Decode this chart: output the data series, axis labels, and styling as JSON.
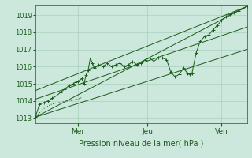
{
  "bg_color": "#cce8dc",
  "grid_color": "#aacfbf",
  "line_color": "#1a5c1a",
  "xlabel": "Pression niveau de la mer( hPa )",
  "yticks": [
    1013,
    1014,
    1015,
    1016,
    1017,
    1018,
    1019
  ],
  "ylim": [
    1012.7,
    1019.6
  ],
  "xlim": [
    0,
    100
  ],
  "xtick_positions": [
    20,
    53,
    88
  ],
  "xtick_labels": [
    "Mer",
    "Jeu",
    "Ven"
  ],
  "trend_lines": [
    [
      [
        0,
        1013.05
      ],
      [
        100,
        1019.5
      ]
    ],
    [
      [
        0,
        1014.6
      ],
      [
        100,
        1019.5
      ]
    ],
    [
      [
        0,
        1013.05
      ],
      [
        100,
        1017.0
      ]
    ],
    [
      [
        0,
        1014.1
      ],
      [
        100,
        1018.3
      ]
    ]
  ],
  "main_series": [
    [
      0,
      1013.05
    ],
    [
      2,
      1013.8
    ],
    [
      4,
      1013.9
    ],
    [
      6,
      1014.0
    ],
    [
      8,
      1014.15
    ],
    [
      10,
      1014.3
    ],
    [
      12,
      1014.5
    ],
    [
      14,
      1014.7
    ],
    [
      16,
      1014.9
    ],
    [
      18,
      1015.0
    ],
    [
      19,
      1015.1
    ],
    [
      20,
      1015.15
    ],
    [
      21,
      1015.2
    ],
    [
      22,
      1015.3
    ],
    [
      23,
      1015.0
    ],
    [
      24,
      1015.5
    ],
    [
      25,
      1015.8
    ],
    [
      26,
      1016.5
    ],
    [
      27,
      1016.2
    ],
    [
      28,
      1015.9
    ],
    [
      30,
      1016.1
    ],
    [
      32,
      1016.0
    ],
    [
      34,
      1016.2
    ],
    [
      36,
      1016.0
    ],
    [
      38,
      1016.1
    ],
    [
      40,
      1016.2
    ],
    [
      42,
      1016.0
    ],
    [
      44,
      1016.1
    ],
    [
      46,
      1016.3
    ],
    [
      48,
      1016.1
    ],
    [
      50,
      1016.2
    ],
    [
      52,
      1016.4
    ],
    [
      54,
      1016.5
    ],
    [
      56,
      1016.3
    ],
    [
      58,
      1016.5
    ],
    [
      60,
      1016.5
    ],
    [
      62,
      1016.4
    ],
    [
      64,
      1015.7
    ],
    [
      66,
      1015.4
    ],
    [
      68,
      1015.55
    ],
    [
      70,
      1015.9
    ],
    [
      72,
      1015.6
    ],
    [
      73,
      1015.55
    ],
    [
      74,
      1015.6
    ],
    [
      76,
      1016.8
    ],
    [
      78,
      1017.5
    ],
    [
      80,
      1017.75
    ],
    [
      82,
      1017.85
    ],
    [
      84,
      1018.15
    ],
    [
      86,
      1018.4
    ],
    [
      88,
      1018.7
    ],
    [
      90,
      1018.9
    ],
    [
      92,
      1019.05
    ],
    [
      94,
      1019.15
    ],
    [
      96,
      1019.25
    ],
    [
      98,
      1019.35
    ],
    [
      100,
      1019.5
    ]
  ],
  "dotted_series": [
    [
      0,
      1013.05
    ],
    [
      2,
      1013.3
    ],
    [
      4,
      1013.55
    ],
    [
      6,
      1013.7
    ],
    [
      8,
      1013.82
    ],
    [
      10,
      1013.88
    ],
    [
      12,
      1013.93
    ],
    [
      14,
      1013.97
    ],
    [
      16,
      1014.0
    ],
    [
      18,
      1014.05
    ],
    [
      20,
      1014.1
    ],
    [
      22,
      1014.2
    ]
  ]
}
